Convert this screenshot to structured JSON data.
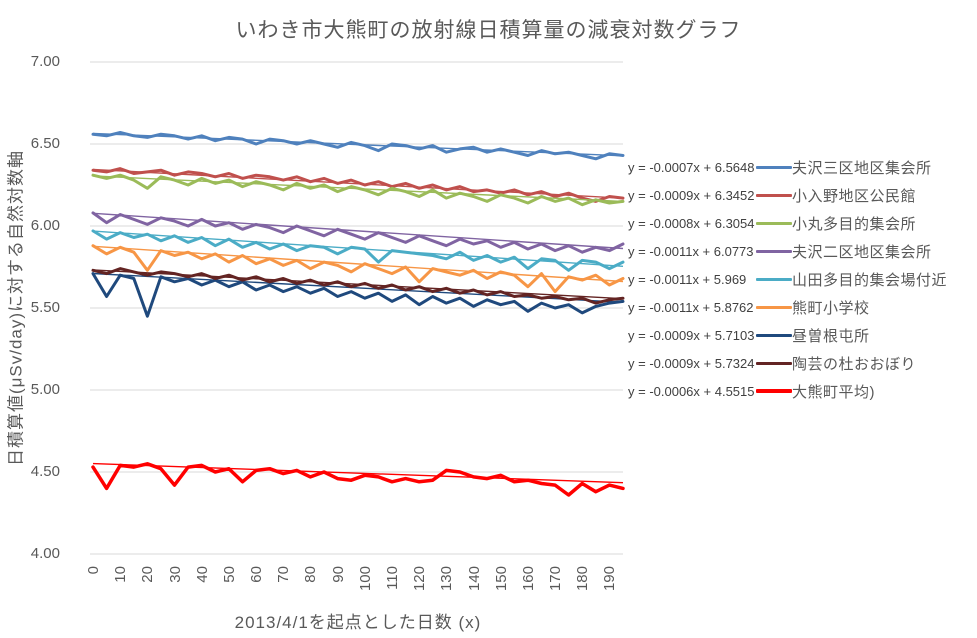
{
  "chart_data": {
    "type": "line",
    "title": "いわき市大熊町の放射線日積算量の減衰対数グラフ",
    "xlabel": "2013/4/1を起点とした日数 (x)",
    "ylabel": "日積算値(μSv/day)に対する自然対数軸",
    "xlim": [
      0,
      195
    ],
    "ylim": [
      4.0,
      7.0
    ],
    "x_ticks": [
      0,
      10,
      20,
      30,
      40,
      50,
      60,
      70,
      80,
      90,
      100,
      110,
      120,
      130,
      140,
      150,
      160,
      170,
      180,
      190
    ],
    "y_ticks": [
      "7.00",
      "6.50",
      "6.00",
      "5.50",
      "5.00",
      "4.50",
      "4.00"
    ],
    "grid": "horizontal",
    "grid_color": "#D9D9D9",
    "text_color": "#595959",
    "equation_color": "#404040",
    "legend_position": "right",
    "x_start": 0,
    "x_step": 5,
    "series": [
      {
        "name": "夫沢三区地区集会所",
        "color": "#4F81BD",
        "trend_equation": "y = -0.0007x + 6.5648",
        "slope": -0.0007,
        "intercept": 6.5648,
        "line_width": 3,
        "values": [
          6.56,
          6.55,
          6.57,
          6.55,
          6.54,
          6.56,
          6.55,
          6.53,
          6.55,
          6.52,
          6.54,
          6.53,
          6.5,
          6.53,
          6.52,
          6.5,
          6.52,
          6.5,
          6.48,
          6.51,
          6.49,
          6.46,
          6.5,
          6.49,
          6.47,
          6.49,
          6.45,
          6.47,
          6.48,
          6.45,
          6.47,
          6.45,
          6.43,
          6.46,
          6.44,
          6.45,
          6.43,
          6.41,
          6.44,
          6.43
        ]
      },
      {
        "name": "小入野地区公民館",
        "color": "#C0504D",
        "trend_equation": "y = -0.0009x + 6.3452",
        "slope": -0.0009,
        "intercept": 6.3452,
        "line_width": 3,
        "values": [
          6.34,
          6.33,
          6.35,
          6.32,
          6.33,
          6.34,
          6.31,
          6.33,
          6.32,
          6.3,
          6.32,
          6.29,
          6.31,
          6.3,
          6.28,
          6.3,
          6.27,
          6.29,
          6.26,
          6.28,
          6.25,
          6.27,
          6.24,
          6.26,
          6.23,
          6.25,
          6.22,
          6.24,
          6.21,
          6.22,
          6.2,
          6.22,
          6.19,
          6.21,
          6.18,
          6.2,
          6.17,
          6.15,
          6.18,
          6.17
        ]
      },
      {
        "name": "小丸多目的集会所",
        "color": "#9BBB59",
        "trend_equation": "y = -0.0008x + 6.3054",
        "slope": -0.0008,
        "intercept": 6.3054,
        "line_width": 3,
        "values": [
          6.31,
          6.29,
          6.31,
          6.28,
          6.23,
          6.3,
          6.28,
          6.25,
          6.29,
          6.26,
          6.28,
          6.24,
          6.27,
          6.25,
          6.22,
          6.26,
          6.23,
          6.25,
          6.21,
          6.24,
          6.22,
          6.19,
          6.23,
          6.21,
          6.18,
          6.22,
          6.17,
          6.2,
          6.18,
          6.15,
          6.19,
          6.17,
          6.14,
          6.18,
          6.15,
          6.17,
          6.13,
          6.16,
          6.14,
          6.15
        ]
      },
      {
        "name": "夫沢二区地区集会所",
        "color": "#8064A2",
        "trend_equation": "y = -0.0011x + 6.0773",
        "slope": -0.0011,
        "intercept": 6.0773,
        "line_width": 3,
        "values": [
          6.08,
          6.02,
          6.07,
          6.04,
          6.01,
          6.05,
          6.03,
          6.0,
          6.04,
          6.0,
          6.02,
          5.98,
          6.01,
          5.99,
          5.96,
          6.0,
          5.97,
          5.94,
          5.98,
          5.95,
          5.92,
          5.96,
          5.93,
          5.9,
          5.94,
          5.91,
          5.88,
          5.92,
          5.89,
          5.91,
          5.87,
          5.9,
          5.86,
          5.89,
          5.85,
          5.88,
          5.84,
          5.87,
          5.85,
          5.89
        ]
      },
      {
        "name": "山田多目的集会場付近",
        "color": "#4BACC6",
        "trend_equation": "y = -0.0011x + 5.969",
        "slope": -0.0011,
        "intercept": 5.969,
        "line_width": 3,
        "values": [
          5.97,
          5.92,
          5.96,
          5.93,
          5.95,
          5.91,
          5.94,
          5.9,
          5.93,
          5.88,
          5.92,
          5.87,
          5.9,
          5.86,
          5.89,
          5.85,
          5.88,
          5.87,
          5.83,
          5.87,
          5.86,
          5.78,
          5.85,
          5.84,
          5.83,
          5.82,
          5.8,
          5.84,
          5.79,
          5.82,
          5.78,
          5.81,
          5.74,
          5.8,
          5.79,
          5.73,
          5.79,
          5.78,
          5.74,
          5.78
        ]
      },
      {
        "name": "熊町小学校",
        "color": "#F79646",
        "trend_equation": "y = -0.0011x + 5.8762",
        "slope": -0.0011,
        "intercept": 5.8762,
        "line_width": 3,
        "values": [
          5.88,
          5.83,
          5.87,
          5.84,
          5.73,
          5.85,
          5.82,
          5.84,
          5.8,
          5.83,
          5.78,
          5.82,
          5.77,
          5.8,
          5.76,
          5.79,
          5.74,
          5.78,
          5.76,
          5.72,
          5.77,
          5.74,
          5.71,
          5.75,
          5.66,
          5.74,
          5.72,
          5.7,
          5.73,
          5.68,
          5.72,
          5.7,
          5.63,
          5.71,
          5.6,
          5.69,
          5.67,
          5.7,
          5.64,
          5.68
        ]
      },
      {
        "name": "昼曽根屯所",
        "color": "#1F497D",
        "trend_equation": "y = -0.0009x + 5.7103",
        "slope": -0.0009,
        "intercept": 5.7103,
        "line_width": 3,
        "values": [
          5.71,
          5.57,
          5.7,
          5.68,
          5.45,
          5.69,
          5.66,
          5.68,
          5.64,
          5.67,
          5.63,
          5.66,
          5.61,
          5.64,
          5.6,
          5.63,
          5.59,
          5.62,
          5.57,
          5.6,
          5.56,
          5.59,
          5.54,
          5.58,
          5.52,
          5.57,
          5.53,
          5.56,
          5.51,
          5.55,
          5.52,
          5.54,
          5.48,
          5.53,
          5.5,
          5.52,
          5.47,
          5.51,
          5.53,
          5.54
        ]
      },
      {
        "name": "陶芸の杜おおぼり",
        "color": "#632423",
        "trend_equation": "y = -0.0009x + 5.7324",
        "slope": -0.0009,
        "intercept": 5.7324,
        "line_width": 3,
        "values": [
          5.73,
          5.71,
          5.74,
          5.72,
          5.7,
          5.72,
          5.71,
          5.69,
          5.71,
          5.68,
          5.7,
          5.67,
          5.69,
          5.66,
          5.68,
          5.65,
          5.67,
          5.64,
          5.66,
          5.63,
          5.65,
          5.62,
          5.64,
          5.61,
          5.63,
          5.6,
          5.62,
          5.59,
          5.61,
          5.58,
          5.6,
          5.57,
          5.58,
          5.56,
          5.57,
          5.55,
          5.56,
          5.53,
          5.55,
          5.56
        ]
      },
      {
        "name": "大熊町平均)",
        "color": "#FF0000",
        "trend_equation": "y = -0.0006x + 4.5515",
        "slope": -0.0006,
        "intercept": 4.5515,
        "line_width": 3.5,
        "values": [
          4.53,
          4.4,
          4.54,
          4.53,
          4.55,
          4.52,
          4.42,
          4.53,
          4.54,
          4.5,
          4.52,
          4.44,
          4.51,
          4.52,
          4.49,
          4.51,
          4.47,
          4.5,
          4.46,
          4.45,
          4.48,
          4.47,
          4.44,
          4.46,
          4.44,
          4.45,
          4.51,
          4.5,
          4.47,
          4.46,
          4.48,
          4.44,
          4.45,
          4.43,
          4.42,
          4.36,
          4.43,
          4.38,
          4.42,
          4.4
        ]
      }
    ]
  }
}
